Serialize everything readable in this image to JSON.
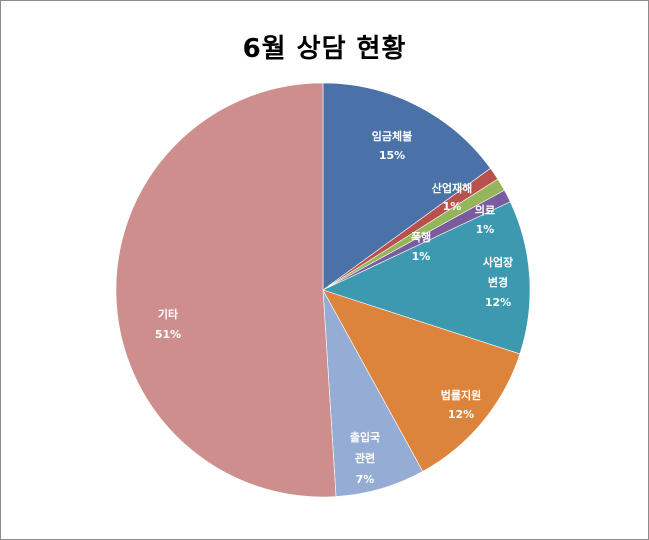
{
  "chart_data": {
    "type": "pie",
    "title": "6월 상담 현황",
    "slices": [
      {
        "name": "임금체불",
        "percent_label": "15%",
        "value": 15,
        "color": "#4a72a8"
      },
      {
        "name": "산업재해",
        "percent_label": "1%",
        "value": 1,
        "color": "#b8504c"
      },
      {
        "name": "의료",
        "percent_label": "1%",
        "value": 1,
        "color": "#95b55a"
      },
      {
        "name": "폭행",
        "percent_label": "1%",
        "value": 1,
        "color": "#7a5c9e"
      },
      {
        "name": "사업장 변경",
        "name_lines": [
          "사업장",
          "변경"
        ],
        "percent_label": "12%",
        "value": 12,
        "color": "#3d99b0"
      },
      {
        "name": "법률지원",
        "percent_label": "12%",
        "value": 12,
        "color": "#dc833c"
      },
      {
        "name": "출입국 관련",
        "name_lines": [
          "출입국",
          "관련"
        ],
        "percent_label": "7%",
        "value": 7,
        "color": "#95acd4"
      },
      {
        "name": "기타",
        "percent_label": "51%",
        "value": 51,
        "color": "#ce8e8d"
      }
    ]
  }
}
